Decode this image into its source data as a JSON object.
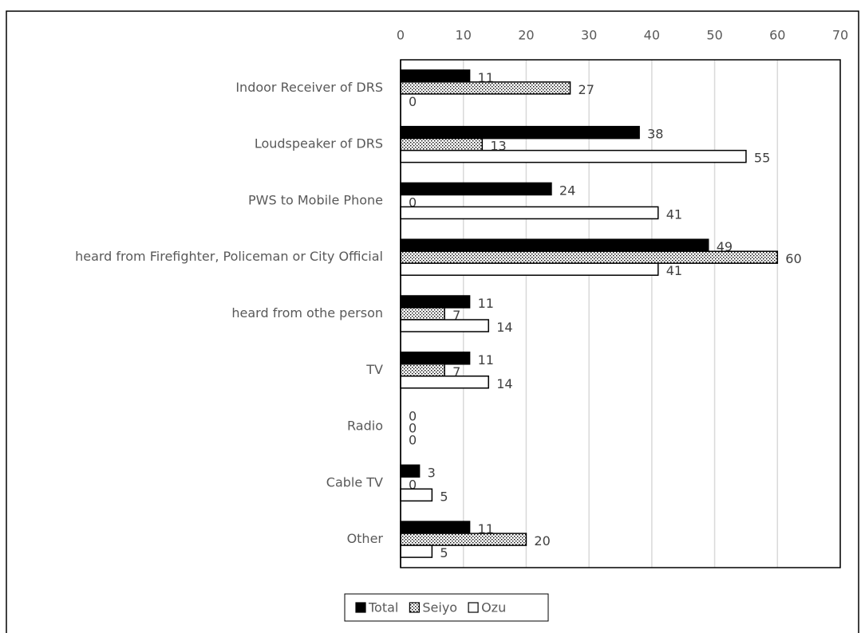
{
  "chart_data": {
    "type": "hbar",
    "categories": [
      "Indoor Receiver of DRS",
      "Loudspeaker of DRS",
      "PWS to Mobile Phone",
      "heard from Firefighter, Policeman or City Official",
      "heard from othe person",
      "TV",
      "Radio",
      "Cable TV",
      "Other"
    ],
    "series": [
      {
        "name": "Total",
        "color": "#000000",
        "values": [
          11,
          38,
          24,
          49,
          11,
          11,
          0,
          3,
          11
        ]
      },
      {
        "name": "Seiyo",
        "color": "#ffffff",
        "pattern": "dots",
        "values": [
          27,
          13,
          0,
          60,
          7,
          7,
          0,
          0,
          20
        ]
      },
      {
        "name": "Ozu",
        "color": "#ffffff",
        "values": [
          0,
          55,
          41,
          41,
          14,
          14,
          0,
          5,
          5
        ]
      }
    ],
    "xlim": [
      0,
      70
    ],
    "xticks": [
      0,
      10,
      20,
      30,
      40,
      50,
      60,
      70
    ],
    "grid": true,
    "legend": "bottom"
  }
}
